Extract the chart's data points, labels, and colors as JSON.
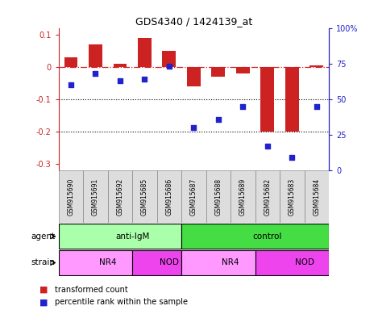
{
  "title": "GDS4340 / 1424139_at",
  "samples": [
    "GSM915690",
    "GSM915691",
    "GSM915692",
    "GSM915685",
    "GSM915686",
    "GSM915687",
    "GSM915688",
    "GSM915689",
    "GSM915682",
    "GSM915683",
    "GSM915684"
  ],
  "bar_values": [
    0.03,
    0.07,
    0.01,
    0.09,
    0.05,
    -0.06,
    -0.03,
    -0.02,
    -0.2,
    -0.2,
    0.005
  ],
  "scatter_values": [
    60,
    68,
    63,
    64,
    73,
    30,
    36,
    45,
    17,
    9,
    45
  ],
  "ylim_left": [
    -0.32,
    0.12
  ],
  "ylim_right": [
    0,
    100
  ],
  "bar_color": "#cc2222",
  "scatter_color": "#2222cc",
  "agent_groups": [
    {
      "label": "anti-IgM",
      "start": 0,
      "end": 5,
      "color": "#aaffaa"
    },
    {
      "label": "control",
      "start": 5,
      "end": 11,
      "color": "#44dd44"
    }
  ],
  "strain_groups": [
    {
      "label": "NR4",
      "start": 0,
      "end": 3,
      "color": "#ff99ff"
    },
    {
      "label": "NOD",
      "start": 3,
      "end": 5,
      "color": "#ee44ee"
    },
    {
      "label": "NR4",
      "start": 5,
      "end": 8,
      "color": "#ff99ff"
    },
    {
      "label": "NOD",
      "start": 8,
      "end": 11,
      "color": "#ee44ee"
    }
  ],
  "legend_items": [
    {
      "label": "transformed count",
      "color": "#cc2222"
    },
    {
      "label": "percentile rank within the sample",
      "color": "#2222cc"
    }
  ],
  "dotted_lines": [
    -0.1,
    -0.2
  ],
  "left_yticks": [
    -0.3,
    -0.2,
    -0.1,
    0,
    0.1
  ],
  "left_yticklabels": [
    "-0.3",
    "-0.2",
    "-0.1",
    "0",
    "0.1"
  ],
  "right_yticks": [
    0,
    25,
    50,
    75,
    100
  ],
  "right_yticklabels": [
    "0",
    "25",
    "50",
    "75",
    "100%"
  ]
}
